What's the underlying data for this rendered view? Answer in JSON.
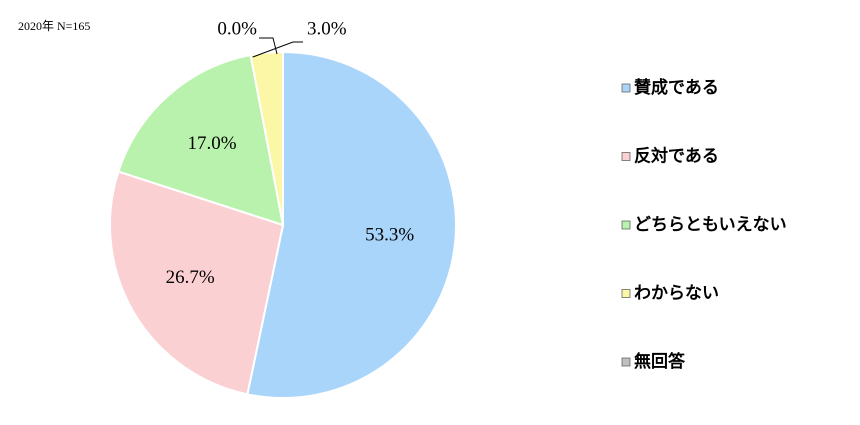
{
  "chart_data": {
    "type": "pie",
    "subtitle": "2020年 N=165",
    "categories": [
      "賛成である",
      "反対である",
      "どちらともいえない",
      "わからない",
      "無回答"
    ],
    "values": [
      53.3,
      26.7,
      17.0,
      3.0,
      0.0
    ],
    "value_labels": [
      "53.3%",
      "26.7%",
      "17.0%",
      "3.0%",
      "0.0%"
    ],
    "colors": [
      "#a9d5fb",
      "#fbd0d2",
      "#b9f2ad",
      "#fbf7a6",
      "#bfbfbf"
    ],
    "legend": "right"
  }
}
